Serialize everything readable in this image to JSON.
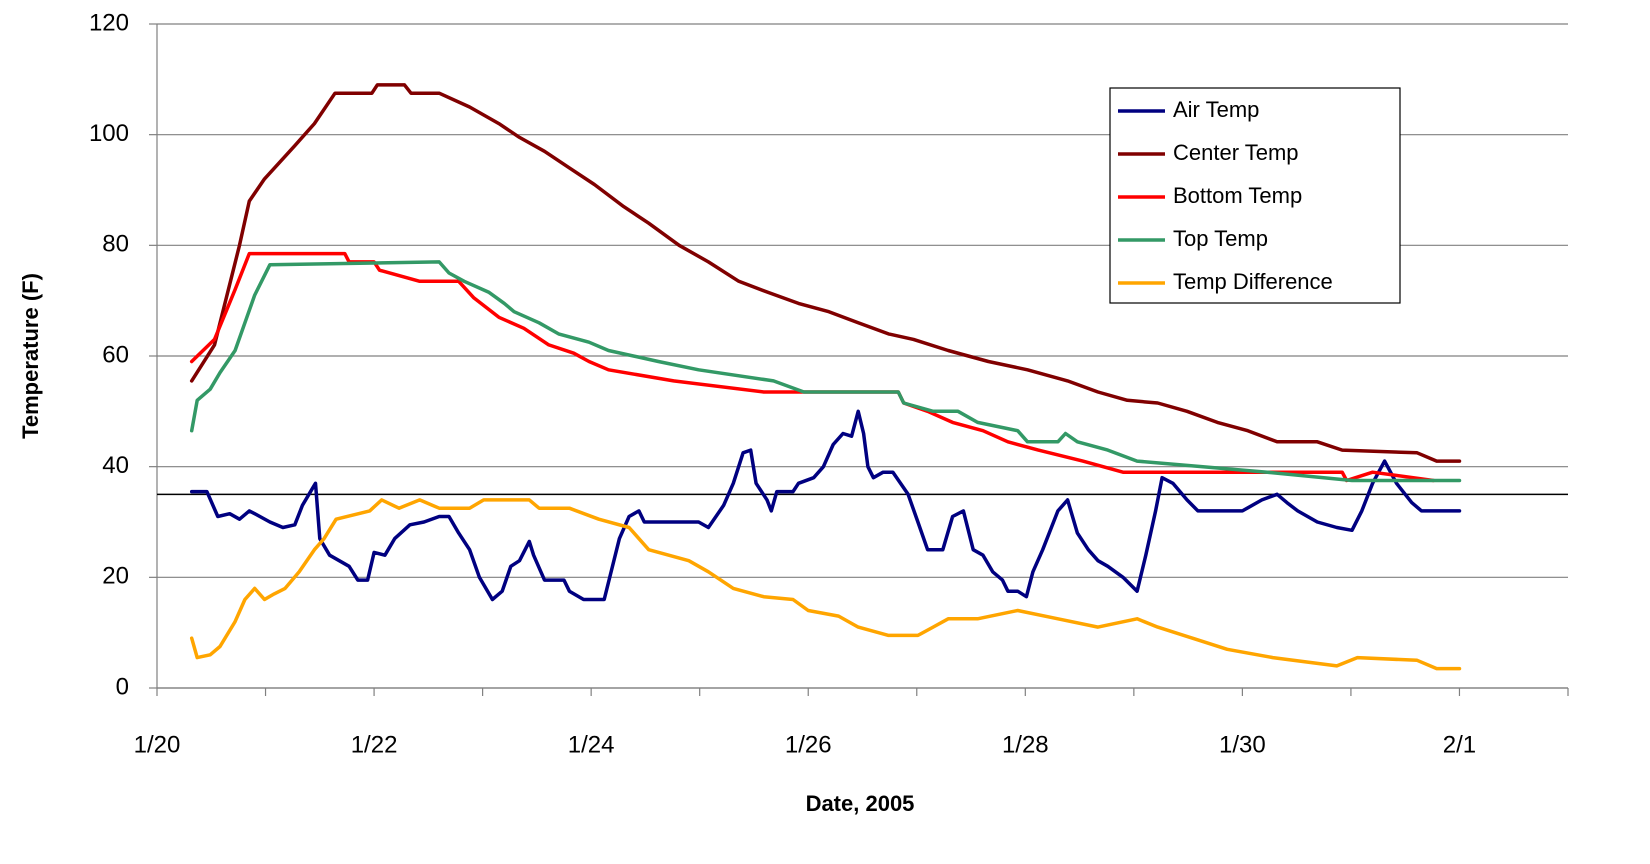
{
  "chart_data": {
    "type": "line",
    "y_label": "Temperature (F)",
    "x_label": "Date, 2005",
    "xlim": [
      0,
      13
    ],
    "ylim": [
      0,
      120
    ],
    "xticks": [
      {
        "value": 0,
        "label": "1/20"
      },
      {
        "value": 2,
        "label": "1/22"
      },
      {
        "value": 4,
        "label": "1/24"
      },
      {
        "value": 6,
        "label": "1/26"
      },
      {
        "value": 8,
        "label": "1/28"
      },
      {
        "value": 10,
        "label": "1/30"
      },
      {
        "value": 12,
        "label": "2/1"
      }
    ],
    "x_minor_ticks": [
      1,
      3,
      5,
      7,
      9,
      11,
      13
    ],
    "yticks": [
      0,
      20,
      40,
      60,
      80,
      100,
      120
    ],
    "grid": true,
    "reference_line": {
      "value": 35,
      "color": "#000000"
    },
    "legend": "upper right",
    "series": [
      {
        "name": "Air Temp",
        "color": "#000080",
        "x": [
          0.32,
          0.46,
          0.56,
          0.67,
          0.76,
          0.85,
          0.9,
          1.04,
          1.16,
          1.27,
          1.34,
          1.43,
          1.46,
          1.5,
          1.59,
          1.77,
          1.85,
          1.94,
          2.0,
          2.1,
          2.19,
          2.33,
          2.46,
          2.6,
          2.69,
          2.78,
          2.88,
          2.97,
          3.09,
          3.18,
          3.26,
          3.34,
          3.43,
          3.47,
          3.57,
          3.75,
          3.8,
          3.93,
          4.12,
          4.26,
          4.35,
          4.44,
          4.49,
          4.99,
          5.08,
          5.22,
          5.31,
          5.4,
          5.47,
          5.52,
          5.62,
          5.66,
          5.71,
          5.86,
          5.91,
          6.05,
          6.14,
          6.23,
          6.32,
          6.4,
          6.46,
          6.51,
          6.55,
          6.6,
          6.69,
          6.78,
          6.92,
          7.01,
          7.1,
          7.24,
          7.33,
          7.43,
          7.52,
          7.61,
          7.7,
          7.79,
          7.84,
          7.93,
          8.01,
          8.07,
          8.16,
          8.3,
          8.39,
          8.48,
          8.58,
          8.67,
          8.76,
          8.9,
          9.03,
          9.11,
          9.2,
          9.26,
          9.36,
          9.49,
          9.59,
          10.0,
          10.18,
          10.32,
          10.41,
          10.51,
          10.69,
          10.87,
          11.01,
          11.1,
          11.2,
          11.31,
          11.42,
          11.56,
          11.65,
          12.0
        ],
        "values": [
          35.5,
          35.5,
          31,
          31.5,
          30.5,
          32,
          31.5,
          30,
          29,
          29.5,
          33,
          36,
          37,
          27,
          24,
          22,
          19.5,
          19.5,
          24.5,
          24,
          27,
          29.5,
          30,
          31,
          31,
          28,
          25,
          20,
          16,
          17.5,
          22,
          23,
          26.5,
          24,
          19.5,
          19.5,
          17.5,
          16,
          16,
          27,
          31,
          32,
          30,
          30,
          29,
          33,
          37,
          42.5,
          43,
          37,
          34,
          32,
          35.5,
          35.5,
          37,
          38,
          40,
          44,
          46,
          45.5,
          50,
          46,
          40,
          38,
          39,
          39,
          35,
          30,
          25,
          25,
          31,
          32,
          25,
          24,
          21,
          19.5,
          17.5,
          17.5,
          16.5,
          21,
          25,
          32,
          34,
          28,
          25,
          23,
          22,
          20,
          17.5,
          24,
          32,
          38,
          37,
          34,
          32,
          32,
          34,
          35,
          33.5,
          32,
          30,
          29,
          28.5,
          32,
          37,
          41,
          37,
          33.5,
          32,
          32
        ]
      },
      {
        "name": "Center Temp",
        "color": "#800000",
        "x": [
          0.32,
          0.53,
          0.76,
          0.85,
          0.99,
          1.27,
          1.45,
          1.64,
          1.98,
          2.03,
          2.28,
          2.34,
          2.6,
          2.88,
          3.15,
          3.34,
          3.57,
          3.8,
          4.03,
          4.3,
          4.53,
          4.81,
          5.08,
          5.36,
          5.63,
          5.91,
          6.19,
          6.46,
          6.74,
          6.97,
          7.29,
          7.66,
          8.02,
          8.39,
          8.67,
          8.94,
          9.22,
          9.49,
          9.77,
          10.05,
          10.32,
          10.69,
          10.92,
          11.61,
          11.79,
          12.0
        ],
        "values": [
          55.5,
          62,
          80,
          88,
          92,
          98,
          102,
          107.5,
          107.5,
          109,
          109,
          107.5,
          107.5,
          105,
          102,
          99.5,
          97,
          94,
          91,
          87,
          84,
          80,
          77,
          73.5,
          71.5,
          69.5,
          68,
          66,
          64,
          63,
          61,
          59,
          57.5,
          55.5,
          53.5,
          52,
          51.5,
          50,
          48,
          46.5,
          44.5,
          44.5,
          43,
          42.5,
          41,
          41
        ]
      },
      {
        "name": "Bottom Temp",
        "color": "#ff0000",
        "x": [
          0.32,
          0.53,
          0.72,
          0.85,
          1.73,
          1.77,
          2.0,
          2.05,
          2.42,
          2.78,
          2.92,
          3.15,
          3.38,
          3.61,
          3.84,
          3.98,
          4.16,
          4.76,
          5.59,
          6.83,
          6.88,
          7.1,
          7.33,
          7.61,
          7.84,
          8.12,
          8.53,
          8.9,
          10.92,
          10.96,
          11.2,
          11.76
        ],
        "values": [
          59,
          63,
          72,
          78.5,
          78.5,
          77,
          77,
          75.5,
          73.5,
          73.5,
          70.5,
          67,
          65,
          62,
          60.5,
          59,
          57.5,
          55.5,
          53.5,
          53.5,
          51.5,
          50,
          48,
          46.5,
          44.5,
          43,
          41,
          39,
          39,
          37.5,
          39,
          37.5
        ]
      },
      {
        "name": "Top Temp",
        "color": "#339966",
        "x": [
          0.32,
          0.37,
          0.49,
          0.58,
          0.72,
          0.81,
          0.9,
          1.04,
          2.6,
          2.69,
          2.83,
          3.06,
          3.2,
          3.29,
          3.52,
          3.7,
          3.98,
          4.16,
          4.62,
          4.99,
          5.68,
          5.96,
          6.83,
          6.88,
          7.15,
          7.38,
          7.56,
          7.93,
          8.02,
          8.3,
          8.37,
          8.48,
          8.76,
          9.03,
          10.23,
          11.01,
          12.0
        ],
        "values": [
          46.5,
          52,
          54,
          57,
          61,
          66,
          71,
          76.5,
          77,
          75,
          73.5,
          71.5,
          69.5,
          68,
          66,
          64,
          62.5,
          61,
          59,
          57.5,
          55.5,
          53.5,
          53.5,
          51.5,
          50,
          50,
          48,
          46.5,
          44.5,
          44.5,
          46,
          44.5,
          43,
          41,
          39,
          37.5,
          37.5
        ]
      },
      {
        "name": "Temp Difference",
        "color": "#ffa500",
        "x": [
          0.32,
          0.37,
          0.49,
          0.58,
          0.72,
          0.81,
          0.9,
          0.99,
          1.08,
          1.18,
          1.31,
          1.45,
          1.54,
          1.65,
          1.96,
          2.07,
          2.23,
          2.42,
          2.6,
          2.88,
          3.01,
          3.43,
          3.52,
          3.8,
          4.07,
          4.35,
          4.53,
          4.9,
          5.08,
          5.31,
          5.59,
          5.86,
          6.0,
          6.28,
          6.46,
          6.74,
          7.01,
          7.15,
          7.29,
          7.56,
          7.93,
          8.3,
          8.67,
          9.03,
          9.22,
          9.54,
          9.86,
          10.28,
          10.87,
          11.06,
          11.61,
          11.79,
          12.0
        ],
        "values": [
          9,
          5.5,
          6,
          7.5,
          12,
          16,
          18,
          16,
          17,
          18,
          21,
          25,
          27,
          30.5,
          32,
          34,
          32.5,
          34,
          32.5,
          32.5,
          34,
          34,
          32.5,
          32.5,
          30.5,
          29,
          25,
          23,
          21,
          18,
          16.5,
          16,
          14,
          13,
          11,
          9.5,
          9.5,
          11,
          12.5,
          12.5,
          14,
          12.5,
          11,
          12.5,
          11,
          9,
          7,
          5.5,
          4,
          5.5,
          5,
          3.5,
          3.5
        ]
      }
    ]
  }
}
